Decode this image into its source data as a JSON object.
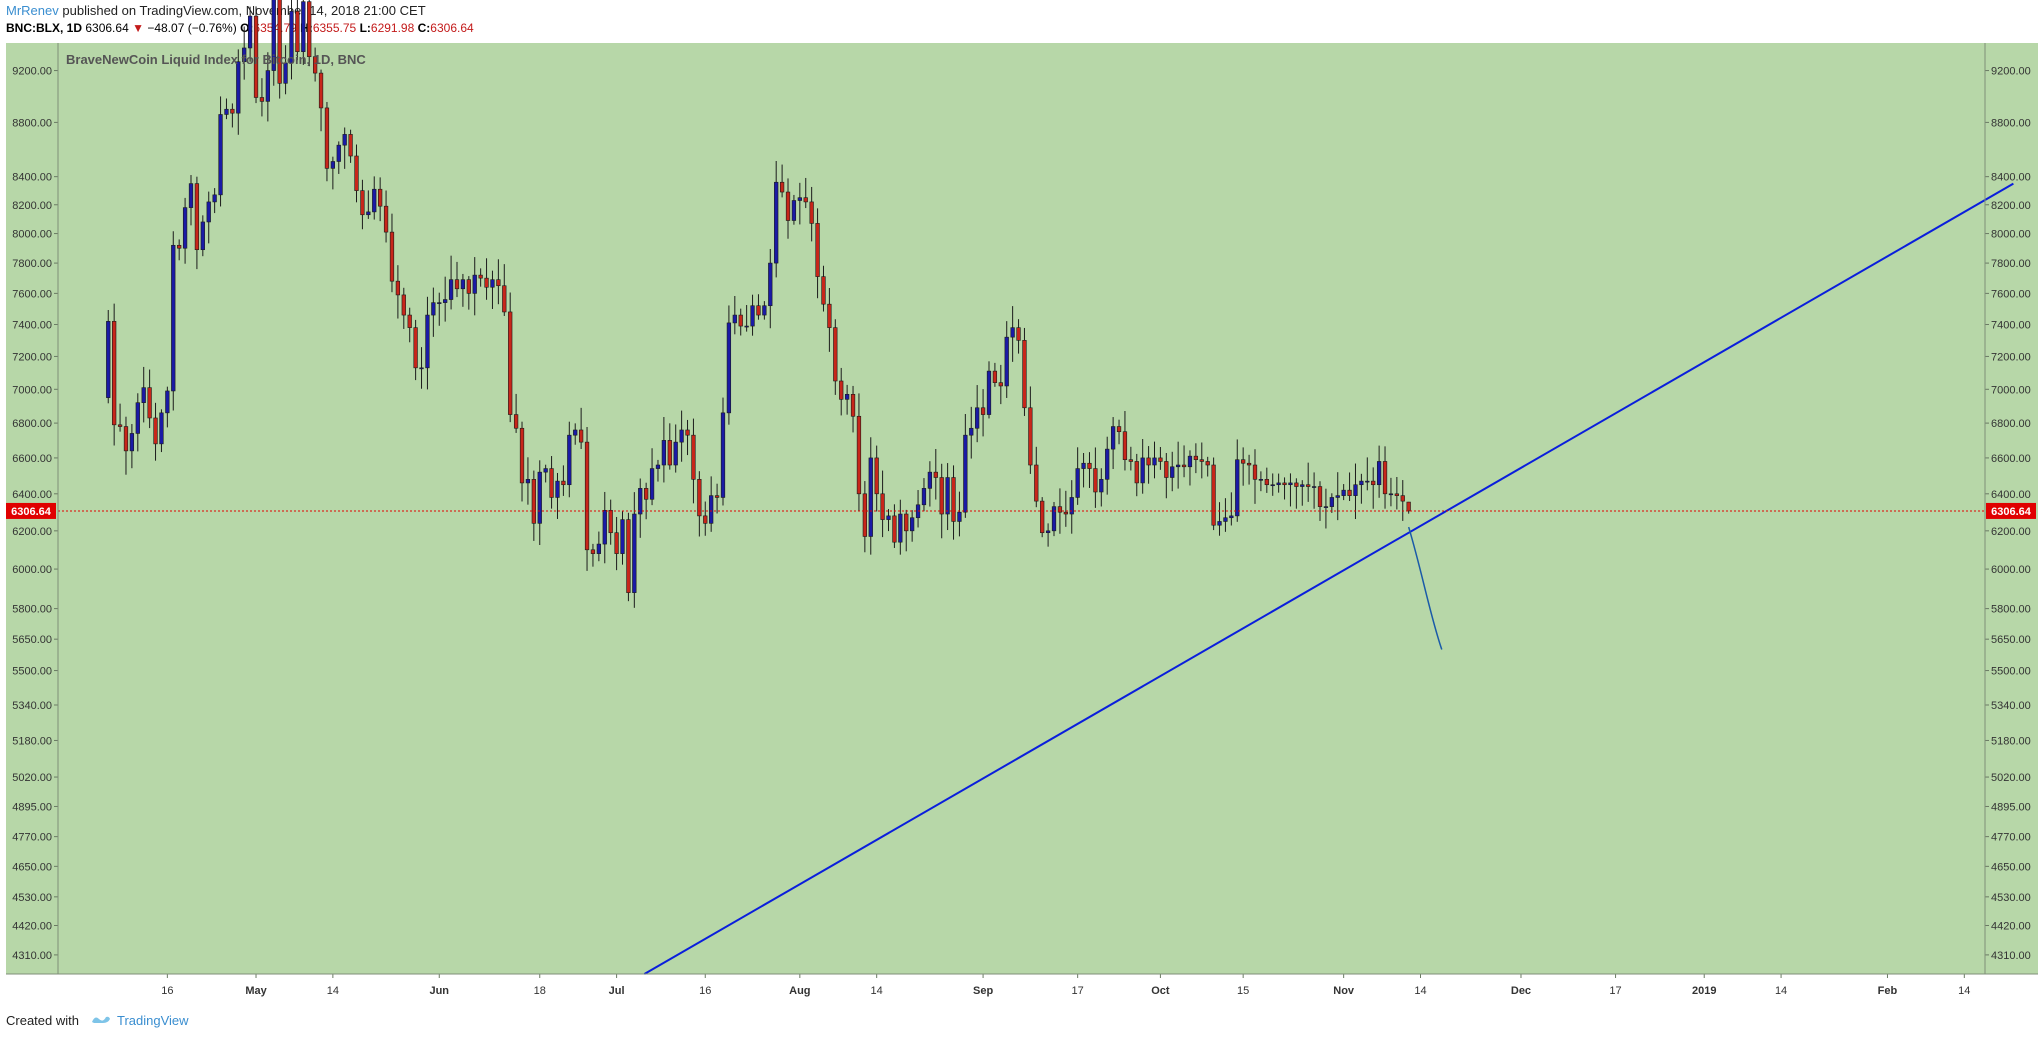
{
  "header": {
    "author": "MrRenev",
    "published_text": "published on TradingView.com, November 14, 2018 21:00 CET",
    "symbol": "BNC:BLX, 1D",
    "last_price": "6306.64",
    "change": "−48.07 (−0.76%)",
    "open_label": "O:",
    "open": "6354.79",
    "high_label": "H:",
    "high": "6355.75",
    "low_label": "L:",
    "low": "6291.98",
    "close_label": "C:",
    "close": "6306.64"
  },
  "footer": {
    "created_with": "Created with",
    "brand": "TradingView"
  },
  "colors": {
    "background": "#b7d7a8",
    "up": "#1a1aa6",
    "down": "#c8261a",
    "trendline": "#0a1edc",
    "price_line": "#e00000",
    "hand_curve": "#1a5aa8"
  },
  "chart_data": {
    "type": "candlestick",
    "title": "BraveNewCoin Liquid Index for Bitcoin, 1D, BNC",
    "price_scale_mode": "log",
    "ylim": [
      4240,
      9420
    ],
    "y_ticks": [
      9200,
      8800,
      8400,
      8200,
      8000,
      7800,
      7600,
      7400,
      7200,
      7000,
      6800,
      6600,
      6400,
      6200,
      6000,
      5800,
      5650,
      5500,
      5340,
      5180,
      5020,
      4895,
      4770,
      4650,
      4530,
      4420,
      4310
    ],
    "y_tick_labels": [
      "9200.00",
      "8800.00",
      "8400.00",
      "8200.00",
      "8000.00",
      "7800.00",
      "7600.00",
      "7400.00",
      "7200.00",
      "7000.00",
      "6800.00",
      "6600.00",
      "6400.00",
      "6200.00",
      "6000.00",
      "5800.00",
      "5650.00",
      "5500.00",
      "5340.00",
      "5180.00",
      "5020.00",
      "4895.00",
      "4770.00",
      "4650.00",
      "4530.00",
      "4420.00",
      "4310.00"
    ],
    "x_start_date": "2018-04-06",
    "x_ticks": [
      {
        "day": 10,
        "label": "16"
      },
      {
        "day": 25,
        "label": "May",
        "bold": true
      },
      {
        "day": 38,
        "label": "14"
      },
      {
        "day": 56,
        "label": "Jun",
        "bold": true
      },
      {
        "day": 73,
        "label": "18"
      },
      {
        "day": 86,
        "label": "Jul",
        "bold": true
      },
      {
        "day": 101,
        "label": "16"
      },
      {
        "day": 117,
        "label": "Aug",
        "bold": true
      },
      {
        "day": 130,
        "label": "14"
      },
      {
        "day": 148,
        "label": "Sep",
        "bold": true
      },
      {
        "day": 164,
        "label": "17"
      },
      {
        "day": 178,
        "label": "Oct",
        "bold": true
      },
      {
        "day": 192,
        "label": "15"
      },
      {
        "day": 209,
        "label": "Nov",
        "bold": true
      },
      {
        "day": 222,
        "label": "14"
      },
      {
        "day": 239,
        "label": "Dec",
        "bold": true
      },
      {
        "day": 255,
        "label": "17"
      },
      {
        "day": 270,
        "label": "2019",
        "bold": true
      },
      {
        "day": 283,
        "label": "14"
      },
      {
        "day": 301,
        "label": "Feb",
        "bold": true
      },
      {
        "day": 314,
        "label": "14"
      }
    ],
    "x_range": [
      -8.5,
      317.5
    ],
    "close_series": [
      7420,
      6790,
      6780,
      6640,
      6740,
      6920,
      7010,
      6830,
      6680,
      6860,
      6990,
      7920,
      7900,
      8180,
      8350,
      7890,
      8080,
      8220,
      8270,
      8860,
      8900,
      8870,
      9270,
      9380,
      9640,
      8990,
      8960,
      9200,
      9810,
      9100,
      9260,
      9680,
      9350,
      9760,
      9310,
      9180,
      8910,
      8460,
      8510,
      8630,
      8710,
      8550,
      8300,
      8130,
      8150,
      8310,
      8190,
      8010,
      7680,
      7590,
      7460,
      7380,
      7130,
      7130,
      7460,
      7540,
      7540,
      7560,
      7690,
      7630,
      7690,
      7600,
      7720,
      7700,
      7640,
      7690,
      7650,
      7480,
      6850,
      6770,
      6460,
      6480,
      6240,
      6520,
      6540,
      6380,
      6470,
      6450,
      6730,
      6760,
      6690,
      6100,
      6080,
      6130,
      6310,
      6190,
      6080,
      6260,
      5880,
      6290,
      6430,
      6370,
      6540,
      6560,
      6700,
      6560,
      6690,
      6760,
      6730,
      6480,
      6280,
      6240,
      6390,
      6380,
      6860,
      7410,
      7460,
      7390,
      7390,
      7520,
      7460,
      7520,
      7800,
      8360,
      8290,
      8090,
      8230,
      8250,
      8220,
      8070,
      7710,
      7530,
      7380,
      7050,
      6940,
      6970,
      6840,
      6400,
      6170,
      6600,
      6400,
      6260,
      6280,
      6140,
      6290,
      6200,
      6270,
      6340,
      6430,
      6520,
      6490,
      6290,
      6490,
      6250,
      6300,
      6730,
      6770,
      6890,
      6850,
      7110,
      7040,
      7020,
      7320,
      7380,
      7300,
      6890,
      6560,
      6360,
      6190,
      6200,
      6330,
      6300,
      6290,
      6380,
      6540,
      6570,
      6540,
      6410,
      6480,
      6650,
      6780,
      6750,
      6590,
      6580,
      6460,
      6600,
      6560,
      6600,
      6580,
      6490,
      6550,
      6560,
      6550,
      6610,
      6590,
      6580,
      6560,
      6230,
      6250,
      6270,
      6280,
      6590,
      6570,
      6560,
      6480,
      6480,
      6450,
      6450,
      6460,
      6450,
      6460,
      6440,
      6450,
      6440,
      6440,
      6330,
      6330,
      6380,
      6390,
      6420,
      6390,
      6450,
      6470,
      6470,
      6450,
      6580,
      6400,
      6400,
      6390,
      6360,
      6306.64
    ],
    "ohlc_last": {
      "open": 6354.79,
      "high": 6355.75,
      "low": 6291.98,
      "close": 6306.64
    },
    "last_price_label": "6306.64",
    "trendline": {
      "points": [
        {
          "day": 90.7,
          "value": 4240
        },
        {
          "day": 322.3,
          "value": 8350
        }
      ],
      "color": "#0a1edc"
    },
    "projection_curve": {
      "points": [
        {
          "day": 220.0,
          "value": 6220
        },
        {
          "day": 222.3,
          "value": 5980
        },
        {
          "day": 223.6,
          "value": 5770
        },
        {
          "day": 225.6,
          "value": 5600
        }
      ],
      "color": "#1a5aa8"
    }
  }
}
